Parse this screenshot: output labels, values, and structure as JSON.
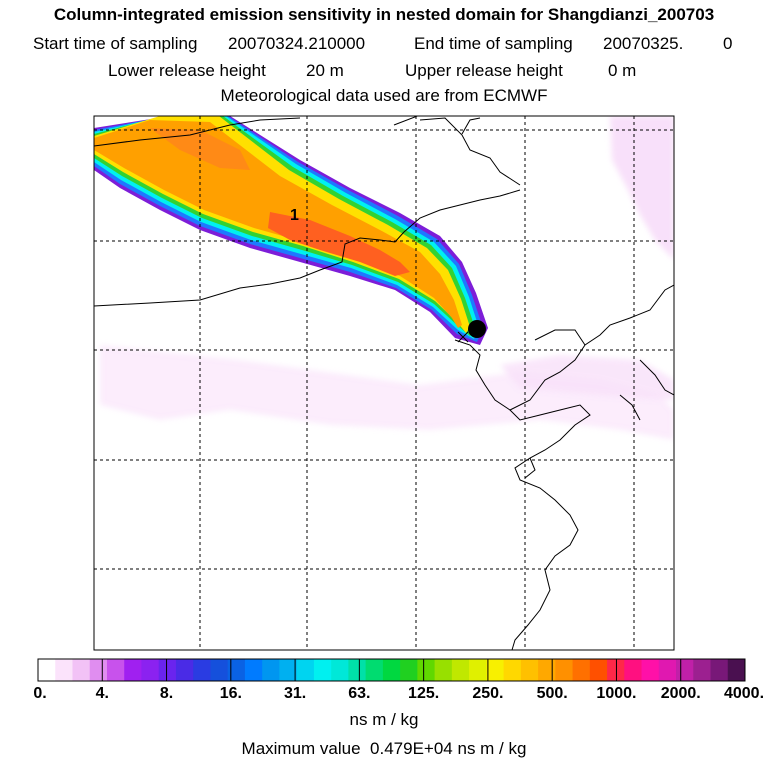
{
  "header": {
    "title": "Column-integrated emission sensitivity in nested domain for Shangdianzi_200703",
    "start_label": "Start time of sampling",
    "start_value": "20070324.210000",
    "end_label": "End time of sampling",
    "end_value": "20070325.",
    "end_suffix": "0",
    "lower_label": "Lower release height",
    "lower_value": "20 m",
    "upper_label": "Upper release height",
    "upper_value": "0 m",
    "meteo": "Meteorological data used are from ECMWF"
  },
  "map": {
    "plume_label": "1",
    "receptor": "Shangdianzi",
    "colors": {
      "plume_outer": "#9b30ff",
      "plume_blue": "#1e90ff",
      "plume_cyan": "#00ffff",
      "plume_green": "#32cd32",
      "plume_yellow": "#ffd700",
      "plume_orange": "#ff8c00",
      "plume_red": "#ff4500",
      "haze": "#f3d1f7",
      "receptor_dot": "#000000"
    }
  },
  "colorbar": {
    "labels": [
      "0.",
      "4.",
      "8.",
      "16.",
      "31.",
      "63.",
      "125.",
      "250.",
      "500.",
      "1000.",
      "2000.",
      "4000."
    ],
    "colors": [
      "#ffffff",
      "#fbe3fb",
      "#f2c2f6",
      "#e08df0",
      "#c852ec",
      "#a020f0",
      "#8b22f0",
      "#6a24ee",
      "#4a2be6",
      "#2a3ce2",
      "#1550dc",
      "#0a62e4",
      "#007bff",
      "#0096f0",
      "#00b0f0",
      "#00d4f0",
      "#00f0f0",
      "#00e8d8",
      "#00e0a8",
      "#00dc70",
      "#00d840",
      "#20d020",
      "#60d800",
      "#98e000",
      "#c0e800",
      "#e0f000",
      "#f8f000",
      "#ffd800",
      "#ffc000",
      "#ffa800",
      "#ff9000",
      "#ff7000",
      "#ff5000",
      "#ff2848",
      "#ff1080",
      "#ff10a8",
      "#e018b0",
      "#c020a8",
      "#9c2090",
      "#781878",
      "#4a1050"
    ],
    "unit": "ns m / kg"
  },
  "footer": {
    "max_label": "Maximum value",
    "max_value": "0.479E+04",
    "max_unit": "ns m / kg"
  }
}
